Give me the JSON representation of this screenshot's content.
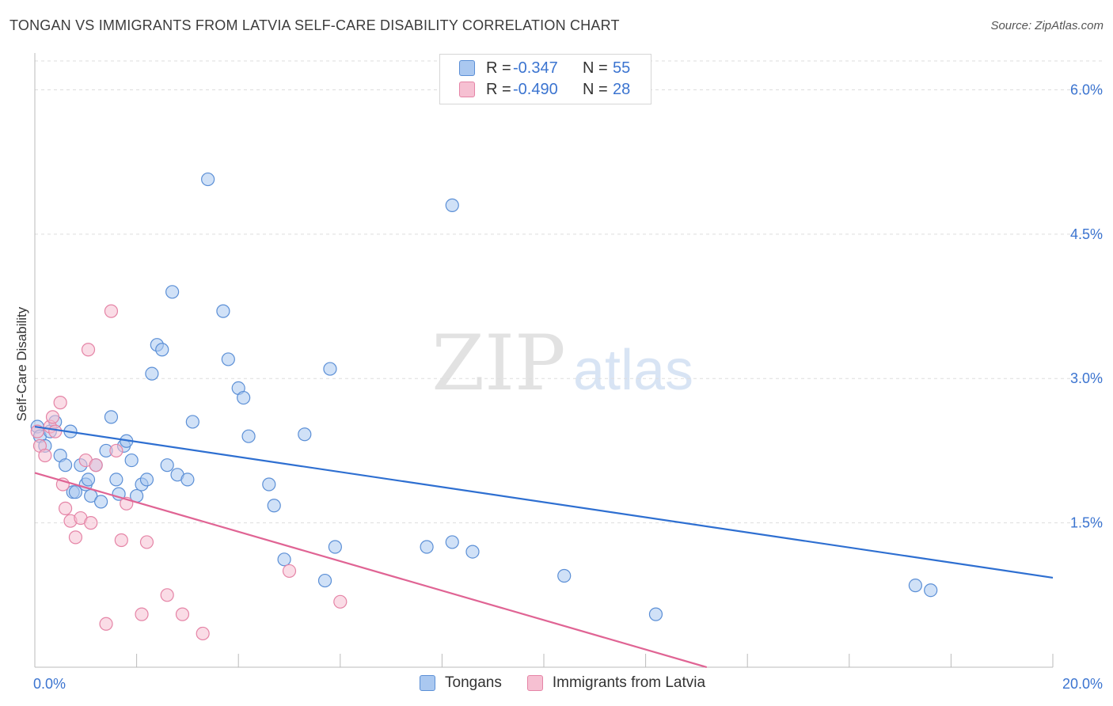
{
  "header": {
    "title": "TONGAN VS IMMIGRANTS FROM LATVIA SELF-CARE DISABILITY CORRELATION CHART",
    "source": "Source: ZipAtlas.com"
  },
  "watermark": {
    "zip": "ZIP",
    "atlas": "atlas"
  },
  "legend": {
    "rows": [
      {
        "r_label": "R =",
        "r_value": "-0.347",
        "n_label": "N =",
        "n_value": "55"
      },
      {
        "r_label": "R =",
        "r_value": "-0.490",
        "n_label": "N =",
        "n_value": "28"
      }
    ]
  },
  "bottom_legend": {
    "series1": "Tongans",
    "series2": "Immigrants from Latvia"
  },
  "colors": {
    "series1_fill": "#aac8f0",
    "series1_stroke": "#5b8fd6",
    "series1_line": "#2e6fd1",
    "series2_fill": "#f6c0d2",
    "series2_stroke": "#e584a6",
    "series2_line": "#e06494",
    "tick_label": "#3b74d0",
    "grid": "#dddddd"
  },
  "chart_data": {
    "type": "scatter",
    "title": "TONGAN VS IMMIGRANTS FROM LATVIA SELF-CARE DISABILITY CORRELATION CHART",
    "xlabel": "",
    "ylabel": "Self-Care Disability",
    "xlim": [
      0,
      20
    ],
    "ylim": [
      0,
      6.3
    ],
    "x_tick_labels": [
      "0.0%",
      "20.0%"
    ],
    "y_ticks": [
      1.5,
      3.0,
      4.5,
      6.0
    ],
    "y_tick_labels": [
      "1.5%",
      "3.0%",
      "4.5%",
      "6.0%"
    ],
    "grid": "horizontal dashed",
    "legend_position": "top-center",
    "series": [
      {
        "name": "Tongans",
        "x": [
          0.05,
          0.1,
          0.2,
          0.3,
          0.4,
          0.5,
          0.6,
          0.7,
          0.75,
          0.8,
          0.9,
          1.0,
          1.05,
          1.1,
          1.2,
          1.3,
          1.4,
          1.5,
          1.6,
          1.65,
          1.75,
          1.8,
          1.9,
          2.0,
          2.1,
          2.2,
          2.3,
          2.4,
          2.5,
          2.6,
          2.7,
          2.8,
          3.0,
          3.1,
          3.4,
          3.7,
          3.8,
          4.0,
          4.1,
          4.2,
          4.6,
          4.7,
          4.9,
          5.3,
          5.7,
          5.8,
          5.9,
          7.7,
          8.2,
          8.2,
          8.6,
          10.4,
          12.2,
          17.3,
          17.6
        ],
        "y": [
          2.5,
          2.4,
          2.3,
          2.45,
          2.55,
          2.2,
          2.1,
          2.45,
          1.82,
          1.82,
          2.1,
          1.9,
          1.95,
          1.78,
          2.1,
          1.72,
          2.25,
          2.6,
          1.95,
          1.8,
          2.3,
          2.35,
          2.15,
          1.78,
          1.9,
          1.95,
          3.05,
          3.35,
          3.3,
          2.1,
          3.9,
          2.0,
          1.95,
          2.55,
          5.07,
          3.7,
          3.2,
          2.9,
          2.8,
          2.4,
          1.9,
          1.68,
          1.12,
          2.42,
          0.9,
          3.1,
          1.25,
          1.25,
          4.8,
          1.3,
          1.2,
          0.95,
          0.55,
          0.85,
          0.8
        ]
      },
      {
        "name": "Immigrants from Latvia",
        "x": [
          0.05,
          0.1,
          0.2,
          0.3,
          0.35,
          0.4,
          0.5,
          0.55,
          0.6,
          0.7,
          0.8,
          0.9,
          1.0,
          1.05,
          1.1,
          1.2,
          1.4,
          1.5,
          1.6,
          1.7,
          1.8,
          2.1,
          2.2,
          2.6,
          2.9,
          3.3,
          5.0,
          6.0
        ],
        "y": [
          2.45,
          2.3,
          2.2,
          2.5,
          2.6,
          2.45,
          2.75,
          1.9,
          1.65,
          1.52,
          1.35,
          1.55,
          2.15,
          3.3,
          1.5,
          2.1,
          0.45,
          3.7,
          2.25,
          1.32,
          1.7,
          0.55,
          1.3,
          0.75,
          0.55,
          0.35,
          1.0,
          0.68
        ]
      }
    ],
    "trend_lines": [
      {
        "name": "Tongans",
        "x": [
          0,
          20
        ],
        "y": [
          2.5,
          0.93
        ]
      },
      {
        "name": "Immigrants from Latvia",
        "x": [
          0,
          13.2
        ],
        "y": [
          2.02,
          0
        ]
      }
    ]
  }
}
